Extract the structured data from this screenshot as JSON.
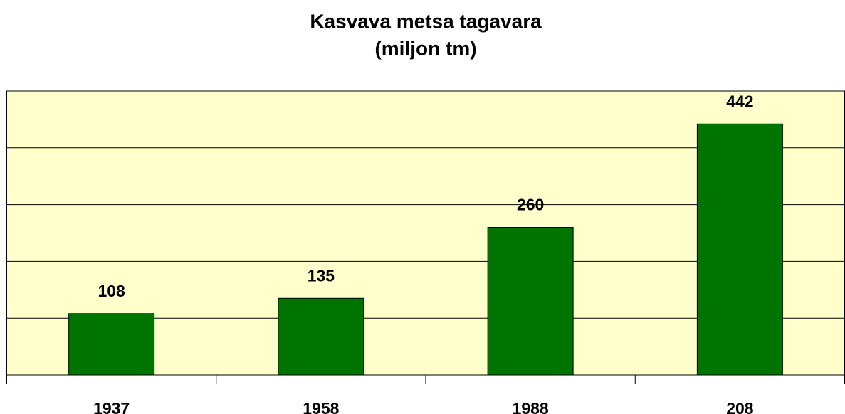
{
  "chart_data": {
    "type": "bar",
    "title": "Kasvava metsa tagavara",
    "subtitle": "(miljon tm)",
    "categories": [
      "1937",
      "1958",
      "1988",
      "208"
    ],
    "values": [
      108,
      135,
      260,
      442
    ],
    "color": "#007400",
    "ylim": [
      0,
      500
    ],
    "yticks": [
      0,
      100,
      200,
      300,
      400,
      500
    ],
    "grid": true
  }
}
